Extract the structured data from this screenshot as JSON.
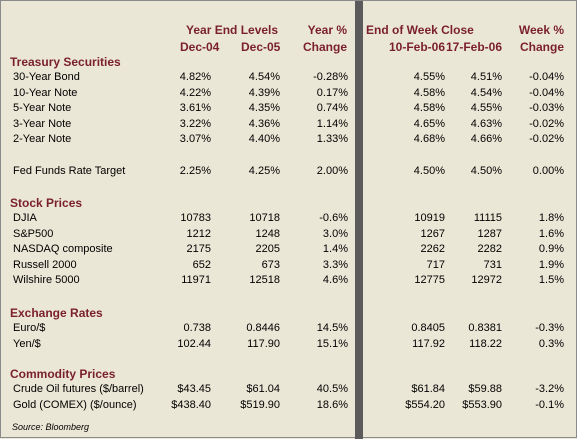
{
  "headers": {
    "year_end_levels": "Year End Levels",
    "dec04": "Dec-04",
    "dec05": "Dec-05",
    "year_pct": "Year %",
    "year_change": "Change",
    "end_of_week": "End of Week Close",
    "feb10": "10-Feb-06",
    "feb17": "17-Feb-06",
    "week_pct": "Week %",
    "week_change": "Change"
  },
  "sections": {
    "treasury": "Treasury Securities",
    "stocks": "Stock Prices",
    "exchange": "Exchange Rates",
    "commodity": "Commodity Prices"
  },
  "rows": {
    "treasury": [
      [
        "30-Year Bond",
        "4.82%",
        "4.54%",
        "-0.28%",
        "4.55%",
        "4.51%",
        "-0.04%"
      ],
      [
        "10-Year Note",
        "4.22%",
        "4.39%",
        "0.17%",
        "4.58%",
        "4.54%",
        "-0.04%"
      ],
      [
        "5-Year Note",
        "3.61%",
        "4.35%",
        "0.74%",
        "4.58%",
        "4.55%",
        "-0.03%"
      ],
      [
        "3-Year Note",
        "3.22%",
        "4.36%",
        "1.14%",
        "4.65%",
        "4.63%",
        "-0.02%"
      ],
      [
        "2-Year Note",
        "3.07%",
        "4.40%",
        "1.33%",
        "4.68%",
        "4.66%",
        "-0.02%"
      ]
    ],
    "fed": [
      [
        "Fed Funds Rate Target",
        "2.25%",
        "4.25%",
        "2.00%",
        "4.50%",
        "4.50%",
        "0.00%"
      ]
    ],
    "stocks": [
      [
        "DJIA",
        "10783",
        "10718",
        "-0.6%",
        "10919",
        "11115",
        "1.8%"
      ],
      [
        "S&P500",
        "1212",
        "1248",
        "3.0%",
        "1267",
        "1287",
        "1.6%"
      ],
      [
        "NASDAQ composite",
        "2175",
        "2205",
        "1.4%",
        "2262",
        "2282",
        "0.9%"
      ],
      [
        "Russell 2000",
        "652",
        "673",
        "3.3%",
        "717",
        "731",
        "1.9%"
      ],
      [
        "Wilshire 5000",
        "11971",
        "12518",
        "4.6%",
        "12775",
        "12972",
        "1.5%"
      ]
    ],
    "exchange": [
      [
        "Euro/$",
        "0.738",
        "0.8446",
        "14.5%",
        "0.8405",
        "0.8381",
        "-0.3%"
      ],
      [
        "Yen/$",
        "102.44",
        "117.90",
        "15.1%",
        "117.92",
        "118.22",
        "0.3%"
      ]
    ],
    "commodity": [
      [
        "Crude Oil futures ($/barrel)",
        "$43.45",
        "$61.04",
        "40.5%",
        "$61.84",
        "$59.88",
        "-3.2%"
      ],
      [
        "Gold (COMEX) ($/ounce)",
        "$438.40",
        "$519.90",
        "18.6%",
        "$554.20",
        "$553.90",
        "-0.1%"
      ]
    ]
  },
  "source": "Source: Bloomberg",
  "colors": {
    "background": "#ebe7d6",
    "heading": "#7a1f2c",
    "divider": "#5b5b5b"
  }
}
